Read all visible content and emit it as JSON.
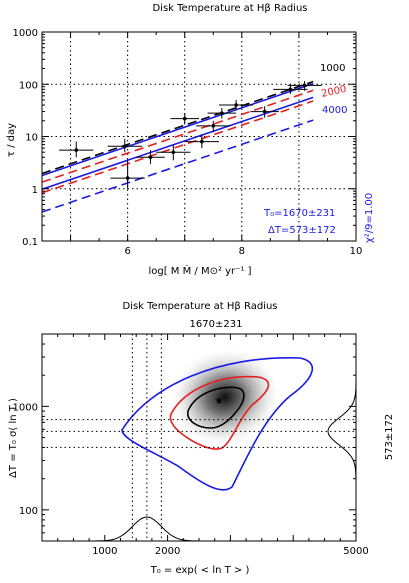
{
  "chart_data": [
    {
      "type": "scatter",
      "title": "Disk Temperature at Hβ Radius",
      "xlabel": "log[ M Ṁ / M⊙² yr⁻¹ ]",
      "ylabel": "τ / day",
      "xlim": [
        4.5,
        10
      ],
      "ylim": [
        0.1,
        1000
      ],
      "yscale": "log",
      "x_ticks": [
        "6",
        "8",
        "10"
      ],
      "y_ticks": [
        "0.1",
        "1",
        "10",
        "100",
        "1000"
      ],
      "grid_x": [
        5,
        6,
        7,
        8,
        9
      ],
      "grid_y": [
        1,
        10,
        100
      ],
      "points": [
        {
          "x": 5.1,
          "y": 5.5,
          "xerr": 0.3,
          "ylo": 4.0,
          "yhi": 8.0
        },
        {
          "x": 5.95,
          "y": 6.5,
          "xerr": 0.3,
          "ylo": 5.0,
          "yhi": 9.0
        },
        {
          "x": 6.0,
          "y": 1.6,
          "xerr": 0.3,
          "ylo": 1.0,
          "yhi": 3.5
        },
        {
          "x": 6.4,
          "y": 4.0,
          "xerr": 0.25,
          "ylo": 3.0,
          "yhi": 5.5
        },
        {
          "x": 6.8,
          "y": 5.0,
          "xerr": 0.3,
          "ylo": 3.5,
          "yhi": 7.0
        },
        {
          "x": 7.0,
          "y": 22.0,
          "xerr": 0.25,
          "ylo": 17.0,
          "yhi": 28.0
        },
        {
          "x": 7.3,
          "y": 8.0,
          "xerr": 0.3,
          "ylo": 6.0,
          "yhi": 11.0
        },
        {
          "x": 7.5,
          "y": 16.0,
          "xerr": 0.3,
          "ylo": 12.0,
          "yhi": 20.0
        },
        {
          "x": 7.65,
          "y": 28.0,
          "xerr": 0.25,
          "ylo": 22.0,
          "yhi": 35.0
        },
        {
          "x": 7.9,
          "y": 40.0,
          "xerr": 0.3,
          "ylo": 32.0,
          "yhi": 50.0
        },
        {
          "x": 8.4,
          "y": 30.0,
          "xerr": 0.25,
          "ylo": 23.0,
          "yhi": 38.0
        },
        {
          "x": 8.85,
          "y": 80.0,
          "xerr": 0.3,
          "ylo": 65.0,
          "yhi": 100.0
        },
        {
          "x": 9.1,
          "y": 95.0,
          "xerr": 0.3,
          "ylo": 75.0,
          "yhi": 115.0
        }
      ],
      "model_lines": [
        {
          "label": "1000",
          "color": "#000000",
          "style": "dashed",
          "y_at_x5": 3.0,
          "slope": 0.37
        },
        {
          "label": "2000",
          "color": "#e62020",
          "style": "dashed",
          "y_at_x5": 1.28,
          "slope": 0.37
        },
        {
          "label": "4000",
          "color": "#1a1ae6",
          "style": "dashed",
          "y_at_x5": 0.55,
          "slope": 0.37
        }
      ],
      "fit_lines": [
        {
          "color": "#1a1ae6",
          "style": "solid",
          "y_at_x5": 2.75,
          "slope": 0.37
        },
        {
          "color": "#1a1ae6",
          "style": "solid",
          "y_at_x5": 1.5,
          "slope": 0.37
        },
        {
          "color": "#e62020",
          "style": "dashed",
          "y_at_x5": 2.05,
          "slope": 0.37
        }
      ],
      "annotations": {
        "t0": "T₀=1670±231",
        "dt": "ΔT=573±172",
        "chi2": "χ²/9=1.00"
      }
    },
    {
      "type": "contour",
      "title": "Disk Temperature at Hβ Radius",
      "subtitle": "1670±231",
      "xlabel": "T₀ = exp( < ln T > )",
      "ylabel": "ΔT = T₀ σ( ln T )",
      "right_label": "573±172",
      "xlim": [
        0,
        5000
      ],
      "ylim": [
        50,
        5000
      ],
      "yscale": "log",
      "x_ticks": [
        "1000",
        "2000",
        "5000"
      ],
      "y_ticks": [
        "100",
        "1000"
      ],
      "best_fit": {
        "T0": 1670,
        "dT": 573
      },
      "T0_interval": [
        1439,
        1670,
        1901
      ],
      "dT_interval": [
        401,
        573,
        745
      ],
      "contours": [
        {
          "level": "inner",
          "color": "#000000"
        },
        {
          "level": "middle",
          "color": "#e62020"
        },
        {
          "level": "outer",
          "color": "#1a1ae6"
        }
      ]
    }
  ]
}
